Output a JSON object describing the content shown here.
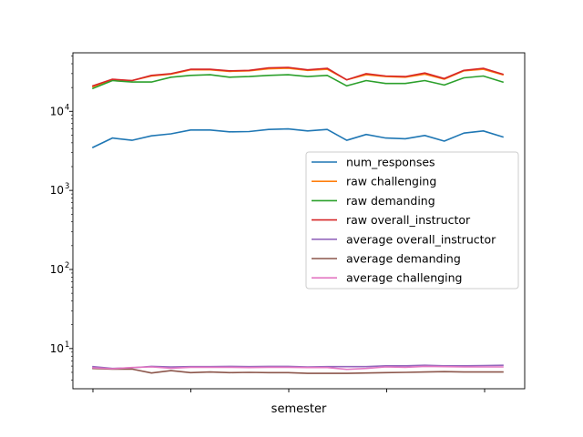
{
  "chart_data": {
    "type": "line",
    "title": "",
    "xlabel": "semester",
    "ylabel": "",
    "yscale": "log",
    "ylim": [
      3.1,
      55000
    ],
    "legend_position": "center-right",
    "grid": false,
    "x": [
      0,
      1,
      2,
      3,
      4,
      5,
      6,
      7,
      8,
      9,
      10,
      11,
      12,
      13,
      14,
      15,
      16,
      17,
      18,
      19,
      20,
      21
    ],
    "y_ticks": [
      {
        "value": 10,
        "label": "10"
      },
      {
        "value": 100,
        "label": "10"
      },
      {
        "value": 1000,
        "label": "10"
      },
      {
        "value": 10000,
        "label": "10"
      }
    ],
    "y_tick_exponents": [
      "1",
      "2",
      "3",
      "4"
    ],
    "series": [
      {
        "name": "num_responses",
        "color": "#1f77b4",
        "values": [
          3500,
          4600,
          4300,
          4900,
          5200,
          5800,
          5800,
          5500,
          5550,
          5900,
          6000,
          5650,
          5900,
          4300,
          5100,
          4600,
          4500,
          4950,
          4200,
          5300,
          5650,
          4750
        ]
      },
      {
        "name": "raw challenging",
        "color": "#ff7f0e",
        "values": [
          20500,
          25000,
          24500,
          28000,
          29500,
          33500,
          33500,
          32000,
          32500,
          34500,
          35000,
          33000,
          34000,
          25000,
          29000,
          27500,
          27000,
          29500,
          25500,
          32500,
          34000,
          29000
        ]
      },
      {
        "name": "raw demanding",
        "color": "#2ca02c",
        "values": [
          19500,
          24500,
          23500,
          23500,
          27000,
          28500,
          29000,
          27000,
          27500,
          28500,
          29000,
          27500,
          28500,
          21000,
          24500,
          22500,
          22500,
          24500,
          21500,
          26500,
          28000,
          23500
        ]
      },
      {
        "name": "raw overall_instructor",
        "color": "#d62728",
        "values": [
          21000,
          25500,
          24500,
          28500,
          30000,
          34000,
          34000,
          32500,
          33000,
          35500,
          36000,
          33500,
          35000,
          25000,
          30000,
          28000,
          27500,
          30500,
          26000,
          33000,
          35000,
          29500
        ]
      },
      {
        "name": "average overall_instructor",
        "color": "#9467bd",
        "values": [
          5.9,
          5.6,
          5.7,
          5.95,
          5.85,
          5.9,
          5.9,
          5.95,
          5.9,
          5.95,
          5.95,
          5.85,
          5.9,
          5.9,
          5.9,
          6.05,
          6.05,
          6.15,
          6.05,
          6.05,
          6.1,
          6.15
        ]
      },
      {
        "name": "average demanding",
        "color": "#8c564b",
        "values": [
          5.6,
          5.5,
          5.5,
          4.9,
          5.25,
          4.95,
          5.05,
          4.95,
          5.0,
          4.95,
          4.95,
          4.85,
          4.85,
          4.85,
          4.9,
          4.95,
          5.0,
          5.05,
          5.1,
          5.05,
          5.05,
          5.05
        ]
      },
      {
        "name": "average challenging",
        "color": "#e377c2",
        "values": [
          5.7,
          5.55,
          5.75,
          5.85,
          5.65,
          5.8,
          5.8,
          5.8,
          5.75,
          5.8,
          5.8,
          5.75,
          5.75,
          5.45,
          5.6,
          5.85,
          5.8,
          5.95,
          5.9,
          5.85,
          5.85,
          5.85
        ]
      }
    ]
  }
}
